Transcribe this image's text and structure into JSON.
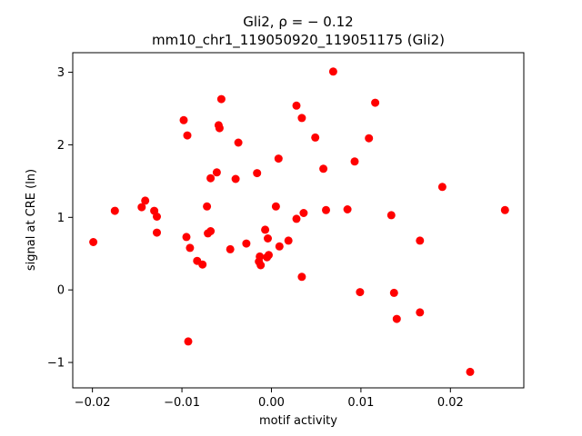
{
  "chart_data": {
    "type": "scatter",
    "title_line1": "Gli2, ρ = − 0.12",
    "title_line2": "mm10_chr1_119050920_119051175 (Gli2)",
    "xlabel": "motif activity",
    "ylabel": "signal at CRE (ln)",
    "xlim": [
      -0.0222,
      0.0282
    ],
    "ylim": [
      -1.35,
      3.27
    ],
    "xticks": [
      -0.02,
      -0.01,
      0.0,
      0.01,
      0.02
    ],
    "xtick_labels": [
      "−0.02",
      "−0.01",
      "0.00",
      "0.01",
      "0.02"
    ],
    "yticks": [
      -1,
      0,
      1,
      2,
      3
    ],
    "ytick_labels": [
      "−1",
      "0",
      "1",
      "2",
      "3"
    ],
    "grid": false,
    "marker_color": "#ff0000",
    "points": [
      {
        "x": -0.0199,
        "y": 0.66
      },
      {
        "x": -0.0175,
        "y": 1.09
      },
      {
        "x": -0.0145,
        "y": 1.14
      },
      {
        "x": -0.0141,
        "y": 1.23
      },
      {
        "x": -0.0131,
        "y": 1.09
      },
      {
        "x": -0.0128,
        "y": 1.01
      },
      {
        "x": -0.0128,
        "y": 0.79
      },
      {
        "x": -0.0098,
        "y": 2.34
      },
      {
        "x": -0.0094,
        "y": 2.13
      },
      {
        "x": -0.0095,
        "y": 0.73
      },
      {
        "x": -0.0091,
        "y": 0.58
      },
      {
        "x": -0.0093,
        "y": -0.71
      },
      {
        "x": -0.0083,
        "y": 0.4
      },
      {
        "x": -0.0077,
        "y": 0.35
      },
      {
        "x": -0.0072,
        "y": 1.15
      },
      {
        "x": -0.0071,
        "y": 0.78
      },
      {
        "x": -0.0068,
        "y": 0.81
      },
      {
        "x": -0.0068,
        "y": 1.54
      },
      {
        "x": -0.0061,
        "y": 1.62
      },
      {
        "x": -0.0059,
        "y": 2.27
      },
      {
        "x": -0.0058,
        "y": 2.23
      },
      {
        "x": -0.0056,
        "y": 2.63
      },
      {
        "x": -0.0046,
        "y": 0.56
      },
      {
        "x": -0.004,
        "y": 1.53
      },
      {
        "x": -0.0037,
        "y": 2.03
      },
      {
        "x": -0.0028,
        "y": 0.64
      },
      {
        "x": -0.0016,
        "y": 1.61
      },
      {
        "x": -0.0014,
        "y": 0.39
      },
      {
        "x": -0.0013,
        "y": 0.46
      },
      {
        "x": -0.0012,
        "y": 0.34
      },
      {
        "x": -0.0007,
        "y": 0.83
      },
      {
        "x": -0.0005,
        "y": 0.45
      },
      {
        "x": -0.0004,
        "y": 0.71
      },
      {
        "x": -0.0003,
        "y": 0.48
      },
      {
        "x": 0.0005,
        "y": 1.15
      },
      {
        "x": 0.0008,
        "y": 1.81
      },
      {
        "x": 0.0009,
        "y": 0.6
      },
      {
        "x": 0.0019,
        "y": 0.68
      },
      {
        "x": 0.0028,
        "y": 2.54
      },
      {
        "x": 0.0028,
        "y": 0.98
      },
      {
        "x": 0.0034,
        "y": 2.37
      },
      {
        "x": 0.0036,
        "y": 1.06
      },
      {
        "x": 0.0034,
        "y": 0.18
      },
      {
        "x": 0.0049,
        "y": 2.1
      },
      {
        "x": 0.0058,
        "y": 1.67
      },
      {
        "x": 0.0061,
        "y": 1.1
      },
      {
        "x": 0.0069,
        "y": 3.01
      },
      {
        "x": 0.0085,
        "y": 1.11
      },
      {
        "x": 0.0093,
        "y": 1.77
      },
      {
        "x": 0.0099,
        "y": -0.03
      },
      {
        "x": 0.0109,
        "y": 2.09
      },
      {
        "x": 0.0116,
        "y": 2.58
      },
      {
        "x": 0.0134,
        "y": 1.03
      },
      {
        "x": 0.0137,
        "y": -0.04
      },
      {
        "x": 0.014,
        "y": -0.4
      },
      {
        "x": 0.0166,
        "y": 0.68
      },
      {
        "x": 0.0166,
        "y": -0.31
      },
      {
        "x": 0.0191,
        "y": 1.42
      },
      {
        "x": 0.0222,
        "y": -1.13
      },
      {
        "x": 0.0261,
        "y": 1.1
      }
    ]
  }
}
